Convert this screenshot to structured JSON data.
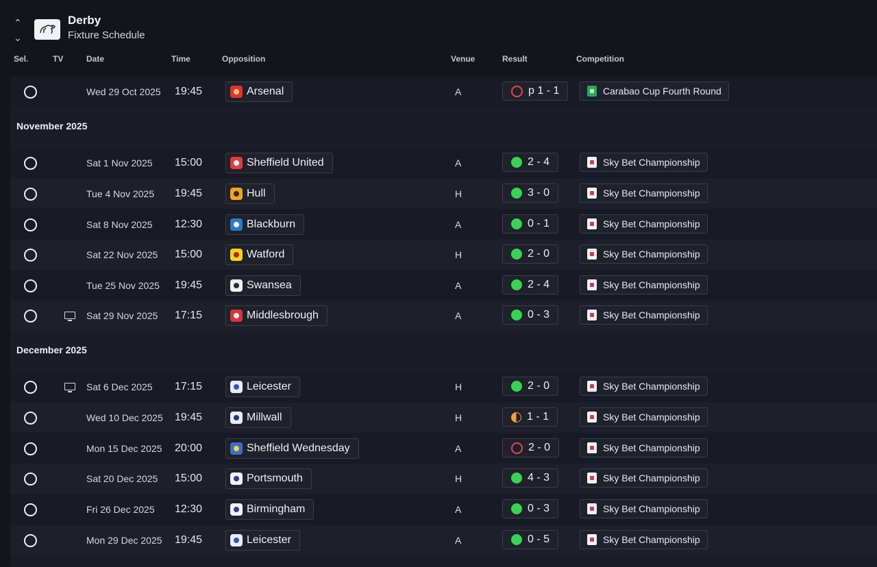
{
  "header": {
    "club": "Derby",
    "subtitle": "Fixture Schedule"
  },
  "columns": {
    "sel": "Sel.",
    "tv": "TV",
    "date": "Date",
    "time": "Time",
    "opposition": "Opposition",
    "venue": "Venue",
    "result": "Result",
    "competition": "Competition"
  },
  "months": {
    "november": "November 2025",
    "december": "December 2025"
  },
  "colors": {
    "win": "#39d353",
    "loss": "#e2484a",
    "draw": "#f59d43",
    "background": "#14151c"
  },
  "fixtures": [
    {
      "date": "Wed 29 Oct 2025",
      "time": "19:45",
      "opposition": "Arsenal",
      "crest": "arsenal-crest-icon",
      "venue": "A",
      "result_type": "loss",
      "result": "p 1 - 1",
      "competition": "Carabao Cup Fourth Round",
      "tv": false
    },
    {
      "date": "Sat 1 Nov 2025",
      "time": "15:00",
      "opposition": "Sheffield United",
      "crest": "sheffield-united-crest-icon",
      "venue": "A",
      "result_type": "win",
      "result": "2 - 4",
      "competition": "Sky Bet Championship",
      "tv": false
    },
    {
      "date": "Tue 4 Nov 2025",
      "time": "19:45",
      "opposition": "Hull",
      "crest": "hull-crest-icon",
      "venue": "H",
      "result_type": "win",
      "result": "3 - 0",
      "competition": "Sky Bet Championship",
      "tv": false
    },
    {
      "date": "Sat 8 Nov 2025",
      "time": "12:30",
      "opposition": "Blackburn",
      "crest": "blackburn-crest-icon",
      "venue": "A",
      "result_type": "win",
      "result": "0 - 1",
      "competition": "Sky Bet Championship",
      "tv": false
    },
    {
      "date": "Sat 22 Nov 2025",
      "time": "15:00",
      "opposition": "Watford",
      "crest": "watford-crest-icon",
      "venue": "H",
      "result_type": "win",
      "result": "2 - 0",
      "competition": "Sky Bet Championship",
      "tv": false
    },
    {
      "date": "Tue 25 Nov 2025",
      "time": "19:45",
      "opposition": "Swansea",
      "crest": "swansea-crest-icon",
      "venue": "A",
      "result_type": "win",
      "result": "2 - 4",
      "competition": "Sky Bet Championship",
      "tv": false
    },
    {
      "date": "Sat 29 Nov 2025",
      "time": "17:15",
      "opposition": "Middlesbrough",
      "crest": "middlesbrough-crest-icon",
      "venue": "A",
      "result_type": "win",
      "result": "0 - 3",
      "competition": "Sky Bet Championship",
      "tv": true
    },
    {
      "date": "Sat 6 Dec 2025",
      "time": "17:15",
      "opposition": "Leicester",
      "crest": "leicester-crest-icon",
      "venue": "H",
      "result_type": "win",
      "result": "2 - 0",
      "competition": "Sky Bet Championship",
      "tv": true
    },
    {
      "date": "Wed 10 Dec 2025",
      "time": "19:45",
      "opposition": "Millwall",
      "crest": "millwall-crest-icon",
      "venue": "H",
      "result_type": "draw",
      "result": "1 - 1",
      "competition": "Sky Bet Championship",
      "tv": false
    },
    {
      "date": "Mon 15 Dec 2025",
      "time": "20:00",
      "opposition": "Sheffield Wednesday",
      "crest": "sheffield-wednesday-crest-icon",
      "venue": "A",
      "result_type": "loss",
      "result": "2 - 0",
      "competition": "Sky Bet Championship",
      "tv": false
    },
    {
      "date": "Sat 20 Dec 2025",
      "time": "15:00",
      "opposition": "Portsmouth",
      "crest": "portsmouth-crest-icon",
      "venue": "H",
      "result_type": "win",
      "result": "4 - 3",
      "competition": "Sky Bet Championship",
      "tv": false
    },
    {
      "date": "Fri 26 Dec 2025",
      "time": "12:30",
      "opposition": "Birmingham",
      "crest": "birmingham-crest-icon",
      "venue": "A",
      "result_type": "win",
      "result": "0 - 3",
      "competition": "Sky Bet Championship",
      "tv": false
    },
    {
      "date": "Mon 29 Dec 2025",
      "time": "19:45",
      "opposition": "Leicester",
      "crest": "leicester-crest-icon",
      "venue": "A",
      "result_type": "win",
      "result": "0 - 5",
      "competition": "Sky Bet Championship",
      "tv": false
    }
  ]
}
